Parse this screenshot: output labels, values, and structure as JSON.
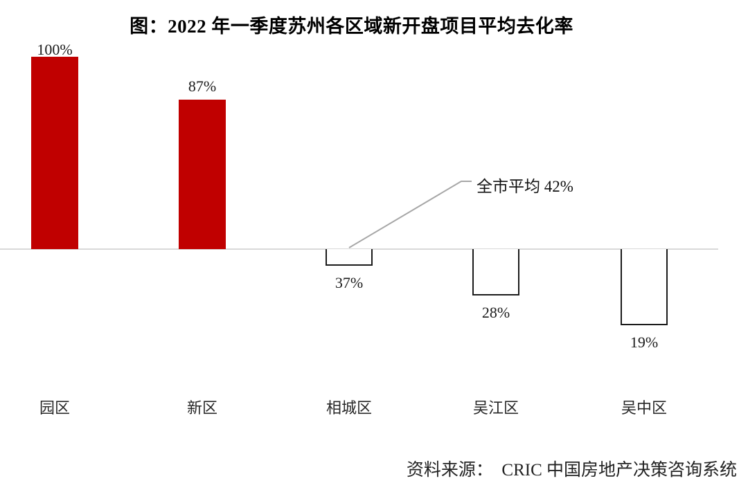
{
  "chart_data": {
    "type": "bar",
    "title": "图：2022 年一季度苏州各区域新开盘项目平均去化率",
    "categories": [
      "园区",
      "新区",
      "相城区",
      "吴江区",
      "吴中区"
    ],
    "values": [
      100,
      87,
      37,
      28,
      19
    ],
    "unit": "%",
    "value_labels": [
      "100%",
      "87%",
      "37%",
      "28%",
      "19%"
    ],
    "baseline": {
      "value": 42,
      "annotation": "全市平均 42%"
    },
    "source": "资料来源：　CRIC 中国房地产决策咨询系统",
    "legend": "none",
    "grid": false,
    "value_axis_hidden": true,
    "colors": {
      "bar_above_baseline": "#c00000",
      "bar_below_baseline_fill": "#ffffff",
      "bar_below_baseline_border": "#1a1a1a",
      "axis_line": "#d9d9d9",
      "annotation_line": "#a6a6a6",
      "text": "#1a1a1a"
    }
  }
}
